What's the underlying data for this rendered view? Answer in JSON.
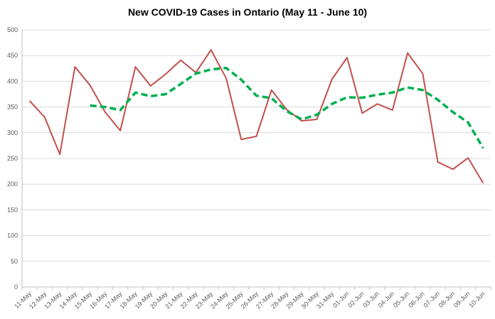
{
  "chart_data": {
    "type": "line",
    "title": "New COVID-19 Cases in Ontario (May 11 - June 10)",
    "categories": [
      "11-May",
      "12-May",
      "13-May",
      "14-May",
      "15-May",
      "16-May",
      "17-May",
      "18-May",
      "19-May",
      "20-May",
      "21-May",
      "22-May",
      "23-May",
      "24-May",
      "25-May",
      "26-May",
      "27-May",
      "28-May",
      "29-May",
      "30-May",
      "31-May",
      "01-Jun",
      "02-Jun",
      "03-Jun",
      "04-Jun",
      "05-Jun",
      "06-Jun",
      "07-Jun",
      "08-Jun",
      "09-Jun",
      "10-Jun"
    ],
    "series": [
      {
        "color": "#c0504d",
        "dashed": false,
        "values": [
          362,
          330,
          258,
          428,
          392,
          340,
          304,
          428,
          391,
          414,
          441,
          417,
          461,
          406,
          287,
          293,
          383,
          345,
          323,
          326,
          404,
          446,
          338,
          356,
          344,
          455,
          415,
          243,
          229,
          251,
          202
        ]
      },
      {
        "color": "#00b050",
        "dashed": true,
        "values": [
          null,
          null,
          null,
          null,
          353,
          350,
          344,
          378,
          371,
          375,
          395,
          415,
          423,
          426,
          403,
          372,
          367,
          342,
          326,
          335,
          356,
          369,
          368,
          374,
          378,
          388,
          383,
          364,
          340,
          320,
          270
        ]
      }
    ],
    "ylim": [
      0,
      500
    ],
    "yticks": [
      0,
      50,
      100,
      150,
      200,
      250,
      300,
      350,
      400,
      450,
      500
    ],
    "grid": true
  }
}
